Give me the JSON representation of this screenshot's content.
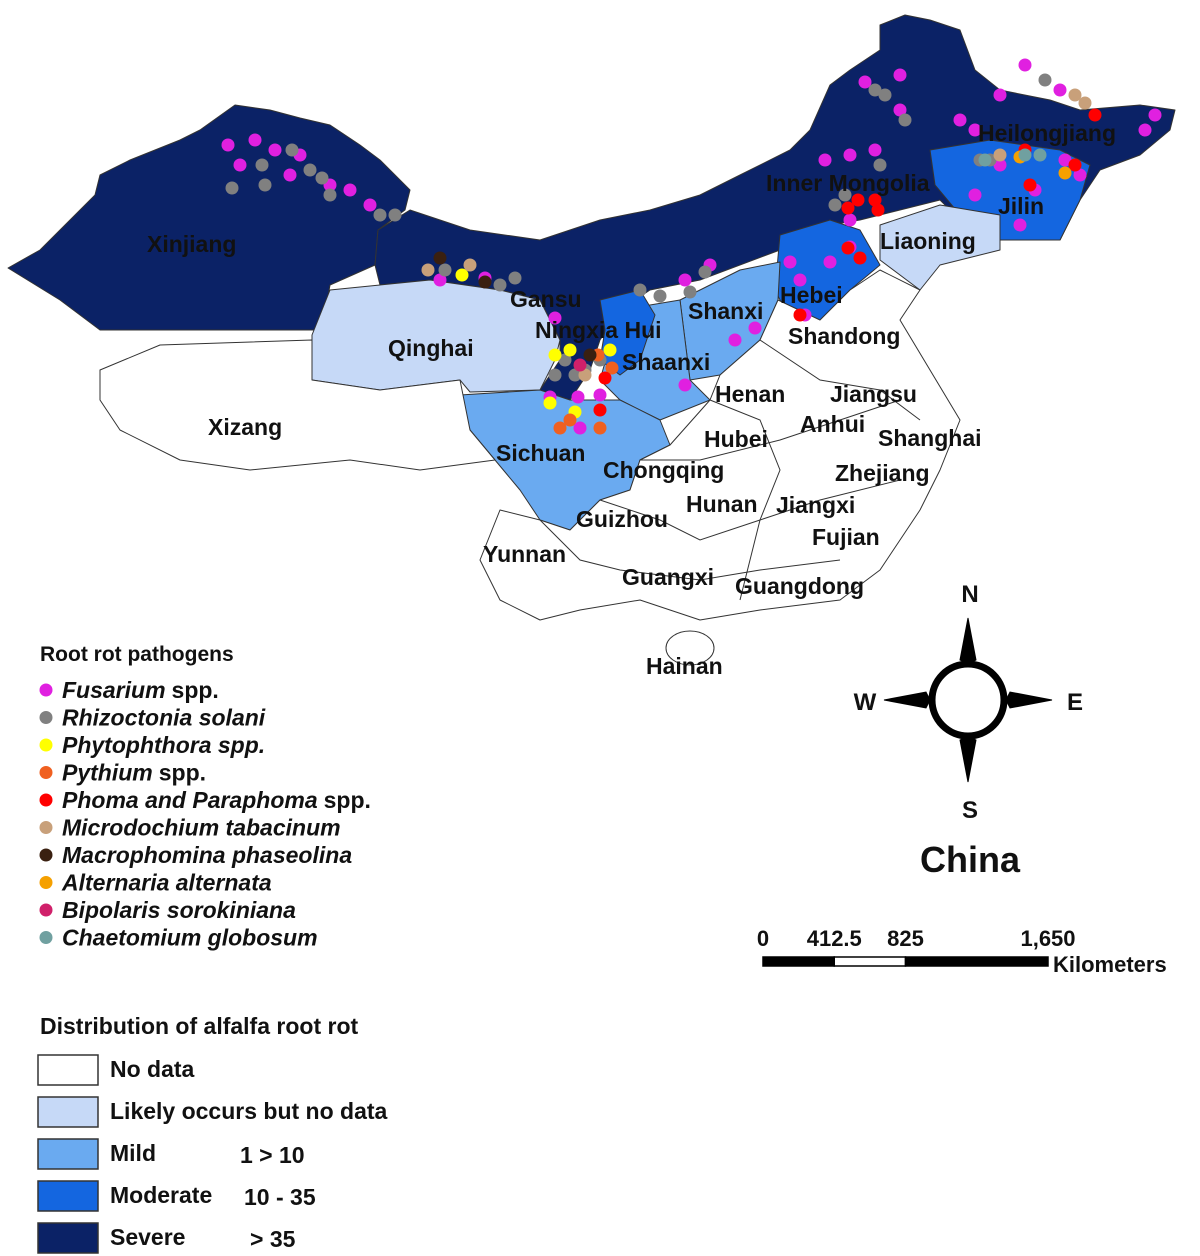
{
  "title": "China",
  "compass": {
    "north": "N",
    "south": "S",
    "west": "W",
    "east": "E"
  },
  "scale_bar": {
    "ticks": [
      0,
      412.5,
      825,
      {
        "value": 1650,
        "label": "1,650"
      }
    ],
    "unit": "Kilometers"
  },
  "pathogens": {
    "title": "Root rot pathogens",
    "items": [
      {
        "name": "Fusarium",
        "suffix": "spp.",
        "color": "#e020e0"
      },
      {
        "name": "Rhizoctonia solani",
        "color": "#808080"
      },
      {
        "name": "Phytophthora spp.",
        "color": "#ffff00"
      },
      {
        "name": "Pythium",
        "suffix": "spp.",
        "color": "#f06020"
      },
      {
        "name": "Phoma and Paraphoma",
        "suffix": "spp.",
        "color": "#ff0000"
      },
      {
        "name": "Microdochium tabacinum",
        "color": "#c8a07a"
      },
      {
        "name": "Macrophomina phaseolina",
        "color": "#3a2010"
      },
      {
        "name": "Alternaria alternata",
        "color": "#f5a000"
      },
      {
        "name": "Bipolaris sorokiniana",
        "color": "#d0206a"
      },
      {
        "name": "Chaetomium globosum",
        "color": "#70a0a0"
      }
    ]
  },
  "distribution": {
    "title": "Distribution of alfalfa root rot",
    "classes": [
      {
        "label": "No data",
        "color": "#ffffff",
        "regions": [
          "Xizang",
          "Yunnan",
          "Guangxi",
          "Guangdong",
          "Hainan",
          "Guizhou",
          "Chongqing",
          "Hubei",
          "Hunan",
          "Jiangxi",
          "Fujian",
          "Zhejiang",
          "Shanghai",
          "Anhui",
          "Jiangsu",
          "Henan",
          "Shandong"
        ]
      },
      {
        "label": "Likely occurs but no data",
        "color": "#c6d9f7",
        "regions": [
          "Qinghai",
          "Liaoning"
        ]
      },
      {
        "label": "Mild",
        "range": "1 > 10",
        "color": "#6aaaf0",
        "regions": [
          "Sichuan",
          "Shaanxi",
          "Shanxi"
        ]
      },
      {
        "label": "Moderate",
        "range": "10 - 35",
        "color": "#1466e0",
        "regions": [
          "Ningxia Hui",
          "Hebei",
          "Jilin"
        ]
      },
      {
        "label": "Severe",
        "range": "> 35",
        "color": "#0b2266",
        "regions": [
          "Xinjiang",
          "Gansu",
          "Inner Mongolia",
          "Heilongjiang"
        ]
      }
    ]
  }
}
